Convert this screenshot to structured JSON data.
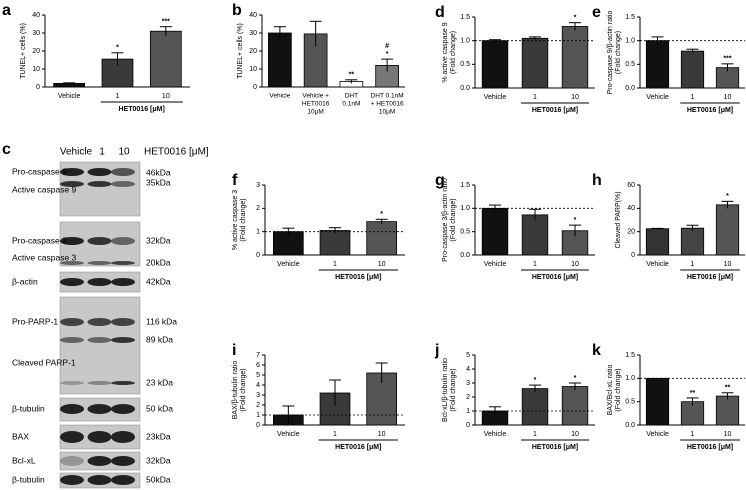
{
  "chart_data": [
    {
      "type": "bar",
      "panel": "a",
      "ylabel": [
        "TUNEL+ cells (%)"
      ],
      "categories": [
        "Vehicle",
        "1",
        "10"
      ],
      "values": [
        2,
        15.5,
        31
      ],
      "errors": [
        0.3,
        3.5,
        2.5
      ],
      "colors": [
        "#111111",
        "#3a3a3a",
        "#555555"
      ],
      "annotations": [
        null,
        [
          "*"
        ],
        [
          "***"
        ]
      ],
      "ylim": [
        0,
        40
      ],
      "yticks": [
        0,
        10,
        20,
        30,
        40
      ],
      "xgroup_label": "HET0016 [μM]"
    },
    {
      "type": "bar",
      "panel": "b",
      "ylabel": [
        "TUNEL+ cells (%)"
      ],
      "categories": [
        [
          "Vehicle"
        ],
        [
          "Vehicle +",
          "HET0016",
          "10μM"
        ],
        [
          "DHT",
          "0.1nM"
        ],
        [
          "DHT 0.1nM",
          "+ HET0016",
          "10μM"
        ]
      ],
      "values": [
        30,
        29.5,
        3,
        12
      ],
      "errors": [
        3.5,
        7,
        1,
        3.5
      ],
      "colors": [
        "#111111",
        "#555555",
        "#ffffff",
        "#777777"
      ],
      "annotations": [
        null,
        null,
        [
          "**"
        ],
        [
          "#",
          "*"
        ]
      ],
      "ylim": [
        0,
        40
      ],
      "yticks": [
        0,
        10,
        20,
        30,
        40
      ]
    },
    {
      "type": "bar",
      "panel": "d",
      "ylabel": [
        "% active caspase 9",
        "(Fold change)"
      ],
      "categories": [
        "Vehicle",
        "1",
        "10"
      ],
      "values": [
        1.0,
        1.05,
        1.3
      ],
      "errors": [
        0.02,
        0.03,
        0.08
      ],
      "colors": [
        "#111111",
        "#3a3a3a",
        "#555555"
      ],
      "annotations": [
        null,
        null,
        [
          "*"
        ]
      ],
      "ylim": [
        0,
        1.5
      ],
      "yticks": [
        {
          "value": 0,
          "label": "0.0"
        },
        0.5,
        {
          "value": 1,
          "label": "1.0"
        },
        1.5
      ],
      "reference_line": 1,
      "xgroup_label": "HET0016 [μM]"
    },
    {
      "type": "bar",
      "panel": "e",
      "ylabel": [
        "Pro-caspase 9/β-actin ratio",
        "(Fold change)"
      ],
      "categories": [
        "Vehicle",
        "1",
        "10"
      ],
      "values": [
        1.0,
        0.78,
        0.43
      ],
      "errors": [
        0.08,
        0.04,
        0.08
      ],
      "colors": [
        "#111111",
        "#3a3a3a",
        "#555555"
      ],
      "annotations": [
        null,
        null,
        [
          "***"
        ]
      ],
      "ylim": [
        0,
        1.5
      ],
      "yticks": [
        {
          "value": 0,
          "label": "0.0"
        },
        0.5,
        {
          "value": 1,
          "label": "1.0"
        },
        1.5
      ],
      "reference_line": 1,
      "xgroup_label": "HET0016 [μM]"
    },
    {
      "type": "bar",
      "panel": "f",
      "ylabel": [
        "% active caspase 3",
        "(Fold change)"
      ],
      "categories": [
        "Vehicle",
        "1",
        "10"
      ],
      "values": [
        1.0,
        1.05,
        1.43
      ],
      "errors": [
        0.15,
        0.12,
        0.1
      ],
      "colors": [
        "#111111",
        "#3a3a3a",
        "#555555"
      ],
      "annotations": [
        null,
        null,
        [
          "*"
        ]
      ],
      "ylim": [
        0,
        3
      ],
      "yticks": [
        0,
        1,
        2,
        3
      ],
      "reference_line": 1,
      "xgroup_label": "HET0016 [μM]"
    },
    {
      "type": "bar",
      "panel": "g",
      "ylabel": [
        "Pro-caspase 3/β-actin ratio",
        "(Fold change)"
      ],
      "categories": [
        "Vehicle",
        "1",
        "10"
      ],
      "values": [
        1.0,
        0.86,
        0.52
      ],
      "errors": [
        0.07,
        0.12,
        0.12
      ],
      "colors": [
        "#111111",
        "#3a3a3a",
        "#555555"
      ],
      "annotations": [
        null,
        null,
        [
          "*"
        ]
      ],
      "ylim": [
        0,
        1.5
      ],
      "yticks": [
        {
          "value": 0,
          "label": "0.0"
        },
        0.5,
        {
          "value": 1,
          "label": "1.0"
        },
        1.5
      ],
      "reference_line": 1,
      "xgroup_label": "HET0016 [μM]"
    },
    {
      "type": "bar",
      "panel": "h",
      "ylabel": [
        "Cleaved PARP(%)"
      ],
      "categories": [
        "Vehicle",
        "1",
        "10"
      ],
      "values": [
        22.5,
        23,
        43
      ],
      "errors": [
        0.3,
        2.5,
        3
      ],
      "colors": [
        "#333333",
        "#444444",
        "#555555"
      ],
      "annotations": [
        null,
        null,
        [
          "*"
        ]
      ],
      "ylim": [
        0,
        60
      ],
      "yticks": [
        0,
        20,
        40,
        60
      ],
      "xgroup_label": "HET0016 [μM]"
    },
    {
      "type": "bar",
      "panel": "i",
      "ylabel": [
        "BAX/β-tubulin ratio",
        "(Fold change)"
      ],
      "categories": [
        "Vehicle",
        "1",
        "10"
      ],
      "values": [
        1.0,
        3.2,
        5.2
      ],
      "errors": [
        0.9,
        1.3,
        1.0
      ],
      "colors": [
        "#111111",
        "#3a3a3a",
        "#555555"
      ],
      "annotations": null,
      "ylim": [
        0,
        7
      ],
      "yticks": [
        0,
        1,
        2,
        3,
        4,
        5,
        6,
        7
      ],
      "reference_line": 1,
      "xgroup_label": "HET0016 [μM]"
    },
    {
      "type": "bar",
      "panel": "j",
      "ylabel": [
        "Bcl-xL/β-tubulin ratio",
        "(Fold change)"
      ],
      "categories": [
        "Vehicle",
        "1",
        "10"
      ],
      "values": [
        1.0,
        2.6,
        2.75
      ],
      "errors": [
        0.3,
        0.25,
        0.25
      ],
      "colors": [
        "#111111",
        "#3a3a3a",
        "#555555"
      ],
      "annotations": [
        null,
        [
          "*"
        ],
        [
          "*"
        ]
      ],
      "ylim": [
        0,
        5
      ],
      "yticks": [
        0,
        1,
        2,
        3,
        4,
        5
      ],
      "reference_line": 1,
      "xgroup_label": "HET0016 [μM]"
    },
    {
      "type": "bar",
      "panel": "k",
      "ylabel": [
        "BAX/Bcl-xL ratio",
        "(Fold change)"
      ],
      "categories": [
        "Vehicle",
        "1",
        "10"
      ],
      "values": [
        1.0,
        0.5,
        0.62
      ],
      "errors": [
        0,
        0.08,
        0.07
      ],
      "colors": [
        "#111111",
        "#555555",
        "#555555"
      ],
      "annotations": [
        null,
        [
          "**"
        ],
        [
          "**"
        ]
      ],
      "ylim": [
        0,
        1.5
      ],
      "yticks": [
        {
          "value": 0,
          "label": "0.0"
        },
        0.5,
        {
          "value": 1,
          "label": "1.0"
        },
        1.5
      ],
      "reference_line": 1,
      "xgroup_label": "HET0016 [μM]"
    }
  ],
  "blot": {
    "panel": "c",
    "lanes": [
      "Vehicle",
      "1",
      "10"
    ],
    "lane_group": "HET0016 [μM]",
    "proteins": [
      "Pro-caspase 9",
      "Active caspase 9",
      "Pro-caspase 3",
      "Active caspase 3",
      "β-actin",
      "Pro-PARP-1",
      "Cleaved PARP-1",
      "β-tubulin",
      "BAX",
      "Bcl-xL",
      "β-tubulin"
    ],
    "markers": [
      "46kDa",
      "35kDa",
      "32kDa",
      "20kDa",
      "42kDa",
      "116 kDa",
      "89 kDa",
      "23 kDa",
      "50 kDa",
      "23kDa",
      "32kDa",
      "50kDa"
    ]
  }
}
